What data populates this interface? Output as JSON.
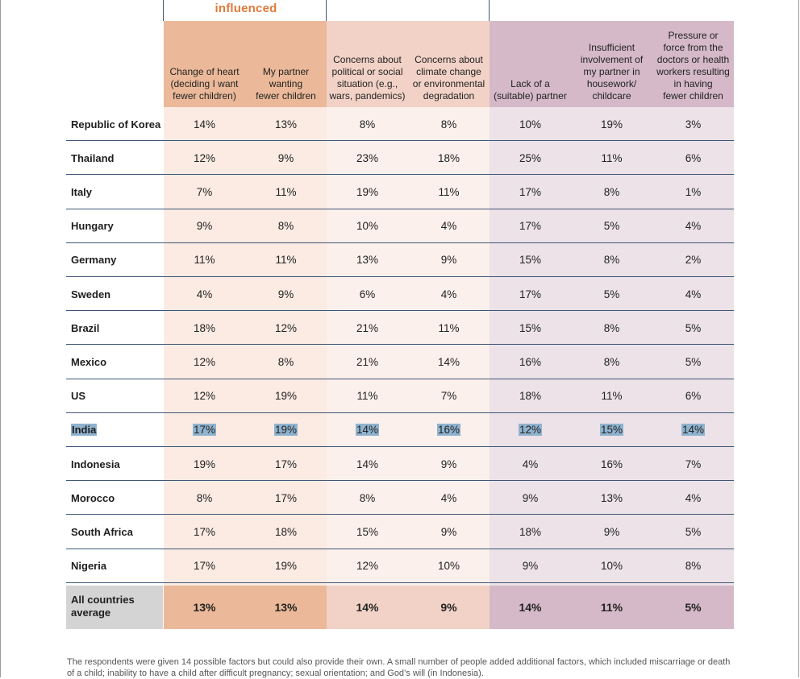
{
  "group_label": "influenced",
  "headers": [
    "Change of heart\n(deciding I want\nfewer children)",
    "My partner\nwanting\nfewer children",
    "Concerns about\npolitical or social\nsituation (e.g.,\nwars, pandemics)",
    "Concerns about\nclimate change\nor environmental\ndegradation",
    "Lack of a\n(suitable) partner",
    "Insufficient\ninvolvement of\nmy partner in\nhousework/\nchildcare",
    "Pressure or\nforce from the\ndoctors or health\nworkers resulting\nin having\nfewer children"
  ],
  "rows": [
    {
      "country": "Republic of Korea",
      "values": [
        "14%",
        "13%",
        "8%",
        "8%",
        "10%",
        "19%",
        "3%"
      ]
    },
    {
      "country": "Thailand",
      "values": [
        "12%",
        "9%",
        "23%",
        "18%",
        "25%",
        "11%",
        "6%"
      ]
    },
    {
      "country": "Italy",
      "values": [
        "7%",
        "11%",
        "19%",
        "11%",
        "17%",
        "8%",
        "1%"
      ]
    },
    {
      "country": "Hungary",
      "values": [
        "9%",
        "8%",
        "10%",
        "4%",
        "17%",
        "5%",
        "4%"
      ]
    },
    {
      "country": "Germany",
      "values": [
        "11%",
        "11%",
        "13%",
        "9%",
        "15%",
        "8%",
        "2%"
      ]
    },
    {
      "country": "Sweden",
      "values": [
        "4%",
        "9%",
        "6%",
        "4%",
        "17%",
        "5%",
        "4%"
      ]
    },
    {
      "country": "Brazil",
      "values": [
        "18%",
        "12%",
        "21%",
        "11%",
        "15%",
        "8%",
        "5%"
      ]
    },
    {
      "country": "Mexico",
      "values": [
        "12%",
        "8%",
        "21%",
        "14%",
        "16%",
        "8%",
        "5%"
      ]
    },
    {
      "country": "US",
      "values": [
        "12%",
        "19%",
        "11%",
        "7%",
        "18%",
        "11%",
        "6%"
      ]
    },
    {
      "country": "India",
      "values": [
        "17%",
        "19%",
        "14%",
        "16%",
        "12%",
        "15%",
        "14%"
      ],
      "highlighted": true
    },
    {
      "country": "Indonesia",
      "values": [
        "19%",
        "17%",
        "14%",
        "9%",
        "4%",
        "16%",
        "7%"
      ]
    },
    {
      "country": "Morocco",
      "values": [
        "8%",
        "17%",
        "8%",
        "4%",
        "9%",
        "13%",
        "4%"
      ]
    },
    {
      "country": "South Africa",
      "values": [
        "17%",
        "18%",
        "15%",
        "9%",
        "18%",
        "9%",
        "5%"
      ]
    },
    {
      "country": "Nigeria",
      "values": [
        "17%",
        "19%",
        "12%",
        "10%",
        "9%",
        "10%",
        "8%"
      ]
    }
  ],
  "average": {
    "label": "All countries average",
    "values": [
      "13%",
      "13%",
      "14%",
      "9%",
      "14%",
      "11%",
      "5%"
    ]
  },
  "footnote": "The respondents were given 14 possible factors but could also provide their own. A small number of people added additional factors, which included miscarriage or death of a child; inability to have a child after difficult pregnancy; sexual orientation; and God’s will (in Indonesia).",
  "colors": {
    "col_header": [
      "#ebb999",
      "#ebb999",
      "#f2d2c6",
      "#f2d2c6",
      "#d5b9c8",
      "#d5b9c8",
      "#d5b9c8"
    ],
    "col_body": [
      "#fbebe3",
      "#fbebe3",
      "#fcf0ec",
      "#fcf0ec",
      "#ece2e8",
      "#ece2e8",
      "#ece2e8"
    ],
    "col_avg": [
      "#ebb999",
      "#ebb999",
      "#f2d2c6",
      "#f2d2c6",
      "#d5b9c8",
      "#d5b9c8",
      "#d5b9c8"
    ],
    "highlight": "#8fb3cf",
    "group_label": "#e07a3a",
    "rule": "#3f5677"
  }
}
